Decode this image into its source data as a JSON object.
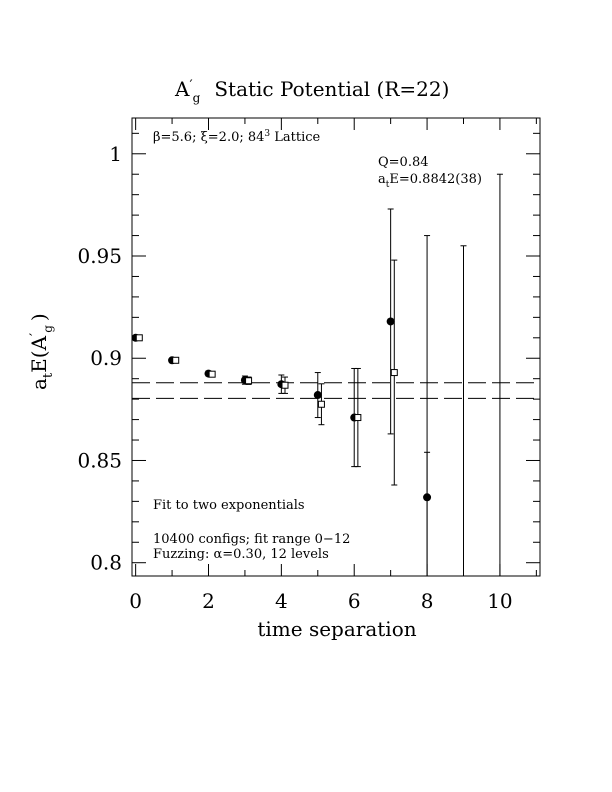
{
  "chart_data": {
    "type": "scatter",
    "title": "A′g Static Potential (R=22)",
    "title_parts": {
      "main": "A",
      "prime": "′",
      "sub": "g",
      "rest": "Static Potential (R=22)"
    },
    "xlabel": "time separation",
    "ylabel_parts": {
      "a": "a",
      "a_sub": "t",
      "mid": "E(A",
      "prime": "′",
      "sub": "g",
      "close": ")"
    },
    "xlim": [
      -0.1,
      11.1
    ],
    "ylim": [
      0.7935,
      1.0175
    ],
    "x_ticks": [
      0,
      2,
      4,
      6,
      8,
      10
    ],
    "x_tick_labels": [
      "0",
      "2",
      "4",
      "6",
      "8",
      "10"
    ],
    "y_ticks": [
      0.8,
      0.85,
      0.9,
      0.95,
      1.0
    ],
    "y_tick_labels": [
      "0.8",
      "0.85",
      "0.9",
      "0.95",
      "1"
    ],
    "grid": false,
    "series": [
      {
        "marker": "filled-circle",
        "points": [
          {
            "x": 0,
            "y": 0.91,
            "err": 0.0008
          },
          {
            "x": 1,
            "y": 0.899,
            "err": 0.001
          },
          {
            "x": 2,
            "y": 0.8925,
            "err": 0.0012
          },
          {
            "x": 3,
            "y": 0.8893,
            "err": 0.002
          },
          {
            "x": 4,
            "y": 0.8873,
            "err": 0.0045
          },
          {
            "x": 5,
            "y": 0.882,
            "err": 0.011
          },
          {
            "x": 6,
            "y": 0.871,
            "err": 0.024
          },
          {
            "x": 7,
            "y": 0.918,
            "err": 0.055
          },
          {
            "x": 8,
            "y": 0.832,
            "err": 0.022,
            "lower_open": true
          },
          {
            "x": 8,
            "y": 0.88,
            "err_hi": 0.08,
            "lower_open": true,
            "no_marker": true
          },
          {
            "x": 9,
            "y": 0.88,
            "err_hi": 0.075,
            "lower_open": true,
            "no_marker": true
          },
          {
            "x": 10,
            "y": 0.88,
            "err_hi": 0.11,
            "lower_open": true,
            "no_marker": true
          }
        ]
      },
      {
        "marker": "open-square",
        "points": [
          {
            "x": 0.1,
            "y": 0.91,
            "err": 0.0008
          },
          {
            "x": 1.1,
            "y": 0.899,
            "err": 0.001
          },
          {
            "x": 2.1,
            "y": 0.8922,
            "err": 0.0012
          },
          {
            "x": 3.1,
            "y": 0.889,
            "err": 0.0018
          },
          {
            "x": 4.1,
            "y": 0.8868,
            "err": 0.004
          },
          {
            "x": 5.1,
            "y": 0.8775,
            "err": 0.01
          },
          {
            "x": 6.1,
            "y": 0.871,
            "err": 0.024
          },
          {
            "x": 7.1,
            "y": 0.893,
            "err": 0.055
          }
        ]
      }
    ],
    "fit": {
      "value": 0.8842,
      "err": 0.0038,
      "band_style": "dashed"
    },
    "annotations": {
      "lattice": {
        "beta": "β",
        "beta_val": "=5.6; ",
        "xi": "ξ",
        "xi_val": "=2.0; 84",
        "sup": "3",
        "tail": " Lattice"
      },
      "q": "Q=0.84",
      "energy": {
        "a": "a",
        "sub": "t",
        "rest": "E=0.8842(38)"
      },
      "fit_note": "Fit to two exponentials",
      "configs": "10400 configs; fit range 0−12",
      "fuzzing": {
        "pre": "Fuzzing: ",
        "alpha": "α",
        "rest": "=0.30, 12 levels"
      }
    }
  }
}
